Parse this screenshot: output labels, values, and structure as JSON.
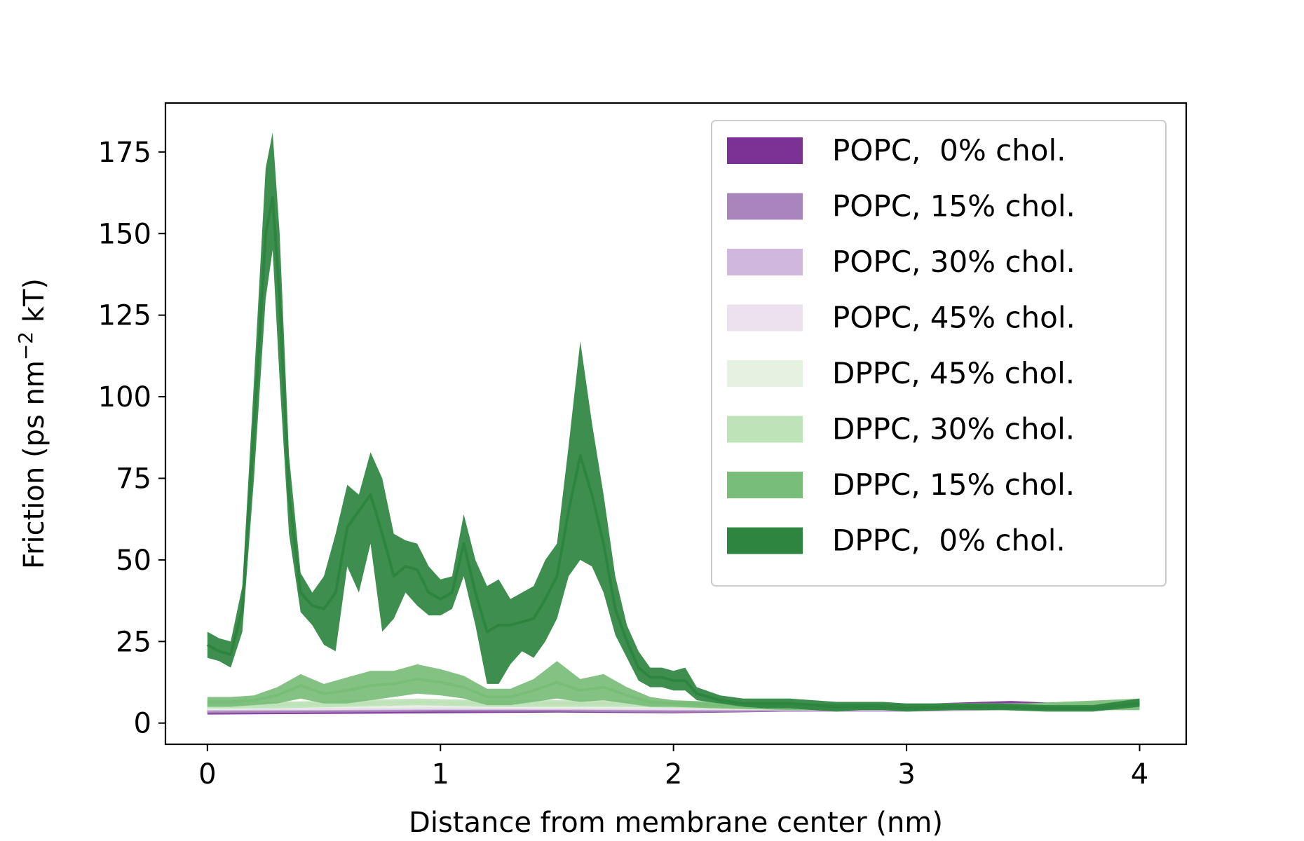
{
  "chart_data": {
    "type": "area",
    "title": "",
    "xlabel": "Distance from membrane center (nm)",
    "ylabel": {
      "prefix": "Friction (ps nm",
      "superscript": "−2",
      "suffix": " kT)"
    },
    "xlim": [
      -0.18,
      4.2
    ],
    "ylim": [
      -6.5,
      190
    ],
    "xticks": [
      0,
      1,
      2,
      3,
      4
    ],
    "yticks": [
      0,
      25,
      50,
      75,
      100,
      125,
      150,
      175
    ],
    "grid": false,
    "legend_position": "upper-right",
    "series": [
      {
        "name": "POPC,  0% chol.",
        "color": "#7b3294",
        "x": [
          0,
          0.5,
          1.0,
          1.5,
          2.0,
          2.5,
          3.0,
          3.45,
          3.7,
          4.0
        ],
        "y": [
          3.5,
          3.8,
          4.0,
          4.2,
          4.0,
          4.5,
          4.8,
          5.5,
          5.0,
          5.0
        ],
        "lower": [
          2.6,
          2.8,
          3.0,
          3.2,
          3.0,
          3.5,
          3.8,
          4.3,
          4.0,
          4.0
        ],
        "upper": [
          4.4,
          4.8,
          5.0,
          5.2,
          5.0,
          5.5,
          5.8,
          6.8,
          6.0,
          6.0
        ]
      },
      {
        "name": "POPC, 15% chol.",
        "color": "#a985bd",
        "x": [
          0,
          0.5,
          1.0,
          1.5,
          2.0,
          2.5,
          3.0,
          3.5,
          4.0
        ],
        "y": [
          4.0,
          4.2,
          4.5,
          4.5,
          4.2,
          4.5,
          4.5,
          5.0,
          5.0
        ],
        "lower": [
          3.0,
          3.2,
          3.5,
          3.5,
          3.2,
          3.5,
          3.5,
          4.0,
          4.0
        ],
        "upper": [
          5.0,
          5.2,
          5.5,
          5.5,
          5.2,
          5.5,
          5.5,
          6.0,
          6.0
        ]
      },
      {
        "name": "POPC, 30% chol.",
        "color": "#cfb7dd",
        "x": [
          0,
          0.5,
          1.0,
          1.5,
          2.0,
          2.5,
          3.0,
          3.5,
          4.0
        ],
        "y": [
          4.5,
          4.8,
          5.0,
          5.0,
          4.8,
          4.8,
          4.8,
          5.0,
          5.0
        ],
        "lower": [
          3.5,
          3.8,
          4.0,
          4.0,
          3.8,
          3.8,
          3.8,
          4.0,
          4.0
        ],
        "upper": [
          5.5,
          5.8,
          6.0,
          6.0,
          5.8,
          5.8,
          5.8,
          6.0,
          6.0
        ]
      },
      {
        "name": "POPC, 45% chol.",
        "color": "#ece1ee",
        "x": [
          0,
          0.5,
          1.0,
          1.5,
          2.0,
          2.5,
          3.0,
          3.5,
          4.0
        ],
        "y": [
          5.0,
          5.0,
          5.2,
          5.2,
          5.0,
          5.0,
          5.0,
          5.0,
          5.0
        ],
        "lower": [
          4.0,
          4.0,
          4.2,
          4.2,
          4.0,
          4.0,
          4.0,
          4.0,
          4.0
        ],
        "upper": [
          6.0,
          6.0,
          6.2,
          6.2,
          6.0,
          6.0,
          6.0,
          6.0,
          6.0
        ]
      },
      {
        "name": "DPPC, 45% chol.",
        "color": "#e5f2e1",
        "x": [
          0,
          0.5,
          1.0,
          1.5,
          2.0,
          2.5,
          3.0,
          3.5,
          4.0
        ],
        "y": [
          5.0,
          5.5,
          5.8,
          5.5,
          5.5,
          5.0,
          5.0,
          5.0,
          5.0
        ],
        "lower": [
          4.0,
          4.5,
          4.8,
          4.5,
          4.5,
          4.0,
          4.0,
          4.0,
          4.0
        ],
        "upper": [
          6.0,
          6.5,
          6.8,
          6.5,
          6.5,
          6.0,
          6.0,
          6.0,
          6.0
        ]
      },
      {
        "name": "DPPC, 30% chol.",
        "color": "#bfe3b8",
        "x": [
          0,
          0.3,
          0.6,
          0.9,
          1.2,
          1.5,
          1.8,
          2.1,
          2.5,
          3.0,
          3.5,
          4.0
        ],
        "y": [
          5.5,
          5.5,
          6.0,
          6.5,
          6.0,
          6.0,
          6.0,
          5.5,
          5.0,
          5.0,
          5.0,
          5.5
        ],
        "lower": [
          4.5,
          4.5,
          5.0,
          5.5,
          5.0,
          5.0,
          5.0,
          4.5,
          4.0,
          4.0,
          4.0,
          4.5
        ],
        "upper": [
          6.5,
          6.5,
          7.0,
          7.5,
          7.0,
          7.0,
          7.0,
          6.5,
          6.0,
          6.0,
          6.0,
          6.5
        ]
      },
      {
        "name": "DPPC, 15% chol.",
        "color": "#78bd78",
        "x": [
          0,
          0.1,
          0.2,
          0.3,
          0.4,
          0.5,
          0.6,
          0.7,
          0.8,
          0.9,
          1.0,
          1.1,
          1.2,
          1.3,
          1.4,
          1.5,
          1.6,
          1.7,
          1.8,
          1.9,
          2.0,
          2.2,
          2.5,
          3.0,
          3.5,
          4.0
        ],
        "y": [
          6.5,
          6.5,
          7.0,
          8.5,
          11.5,
          9.0,
          10.0,
          11.5,
          12.0,
          13.5,
          12.5,
          11.0,
          8.0,
          8.0,
          10.0,
          12.5,
          10.0,
          11.0,
          8.5,
          6.5,
          6.0,
          5.5,
          5.0,
          5.0,
          5.0,
          5.5
        ],
        "lower": [
          5.0,
          5.0,
          5.5,
          6.0,
          7.5,
          6.0,
          6.0,
          7.0,
          8.0,
          9.0,
          8.5,
          7.5,
          5.5,
          5.5,
          6.5,
          7.5,
          6.5,
          7.0,
          6.0,
          5.0,
          5.0,
          4.5,
          4.0,
          4.0,
          4.0,
          4.0
        ],
        "upper": [
          8.0,
          8.0,
          8.5,
          11.0,
          15.0,
          12.0,
          14.0,
          16.0,
          16.0,
          18.0,
          16.5,
          14.5,
          10.5,
          10.5,
          13.5,
          19.0,
          13.5,
          15.0,
          11.0,
          8.0,
          7.0,
          6.5,
          6.0,
          6.0,
          6.0,
          7.5
        ]
      },
      {
        "name": "DPPC,  0% chol.",
        "color": "#2e8540",
        "x": [
          0,
          0.05,
          0.1,
          0.15,
          0.2,
          0.25,
          0.28,
          0.31,
          0.35,
          0.4,
          0.45,
          0.5,
          0.55,
          0.6,
          0.65,
          0.7,
          0.75,
          0.8,
          0.85,
          0.9,
          0.95,
          1.0,
          1.05,
          1.1,
          1.15,
          1.2,
          1.25,
          1.3,
          1.35,
          1.4,
          1.45,
          1.5,
          1.55,
          1.6,
          1.65,
          1.7,
          1.75,
          1.8,
          1.85,
          1.9,
          1.95,
          2.0,
          2.05,
          2.1,
          2.2,
          2.3,
          2.4,
          2.5,
          2.6,
          2.7,
          2.8,
          2.9,
          3.0,
          3.2,
          3.4,
          3.6,
          3.8,
          4.0
        ],
        "y": [
          24,
          22,
          21,
          35,
          90,
          150,
          161,
          130,
          70,
          40,
          36,
          35,
          40,
          60,
          65,
          70,
          58,
          45,
          48,
          47,
          40,
          38,
          40,
          55,
          40,
          28,
          30,
          30,
          31,
          32,
          38,
          45,
          65,
          82,
          70,
          55,
          35,
          25,
          17,
          14,
          14,
          13,
          13,
          9,
          7,
          6,
          6,
          6,
          5.5,
          5,
          5,
          5,
          4.5,
          5,
          5,
          4.5,
          4.5,
          6
        ],
        "lower": [
          20,
          19,
          17,
          28,
          75,
          130,
          145,
          105,
          58,
          34,
          30,
          24,
          22,
          48,
          40,
          55,
          28,
          32,
          40,
          36,
          33,
          33,
          35,
          45,
          30,
          12,
          12,
          18,
          22,
          20,
          25,
          32,
          45,
          50,
          48,
          40,
          27,
          20,
          13,
          11,
          11,
          10,
          10,
          7,
          6,
          5,
          4.5,
          4.5,
          4,
          3.5,
          4,
          4,
          3.5,
          4,
          4,
          3.5,
          3.5,
          5
        ],
        "upper": [
          28,
          26,
          25,
          42,
          105,
          170,
          181,
          150,
          82,
          46,
          40,
          45,
          58,
          73,
          70,
          83,
          75,
          58,
          56,
          55,
          48,
          44,
          45,
          64,
          50,
          42,
          44,
          38,
          40,
          42,
          50,
          55,
          85,
          117,
          92,
          70,
          45,
          30,
          22,
          17,
          17,
          16,
          17,
          11,
          8.5,
          7.5,
          7.5,
          7.5,
          7,
          6.5,
          6.5,
          6.5,
          6,
          6,
          6,
          5.5,
          5.5,
          7.5
        ]
      }
    ]
  }
}
